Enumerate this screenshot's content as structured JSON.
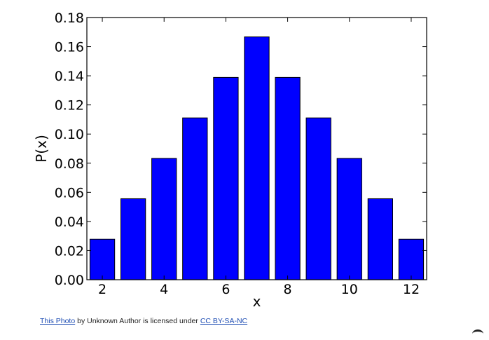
{
  "chart_data": {
    "type": "bar",
    "x": [
      2,
      3,
      4,
      5,
      6,
      7,
      8,
      9,
      10,
      11,
      12
    ],
    "values": [
      0.0278,
      0.0556,
      0.0833,
      0.1111,
      0.1389,
      0.1667,
      0.1389,
      0.1111,
      0.0833,
      0.0556,
      0.0278
    ],
    "xlabel": "x",
    "ylabel": "P(x)",
    "xlim": [
      1.5,
      12.5
    ],
    "ylim": [
      0,
      0.18
    ],
    "xticks": [
      "2",
      "4",
      "6",
      "8",
      "10",
      "12"
    ],
    "yticks": [
      "0.00",
      "0.02",
      "0.04",
      "0.06",
      "0.08",
      "0.10",
      "0.12",
      "0.14",
      "0.16",
      "0.18"
    ],
    "bar_color": "#0000ff",
    "edge_color": "#000000",
    "grid": false,
    "legend": "none"
  },
  "caption": {
    "photo_link": "This Photo",
    "middle": " by Unknown Author is licensed under ",
    "license_link": "CC BY-SA-NC"
  }
}
